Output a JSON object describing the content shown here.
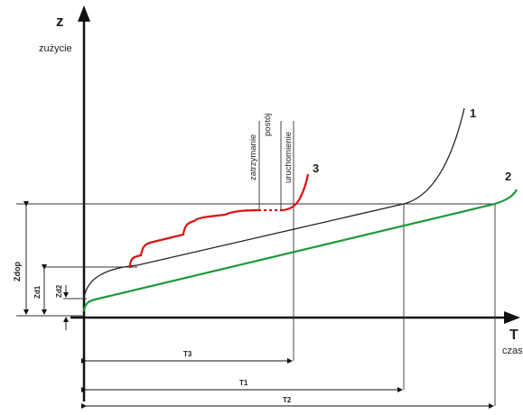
{
  "axes": {
    "y_symbol": "z",
    "y_label": "zużycie",
    "x_symbol": "T",
    "x_label": "czas"
  },
  "annotations": {
    "stop_label": "zatrzymanie",
    "idle_label": "postój",
    "restart_label": "uruchomienie"
  },
  "curve_labels": {
    "c1": "1",
    "c2": "2",
    "c3": "3"
  },
  "vertical_dims": {
    "z_dop": "Zdop",
    "z_d1": "Zd1",
    "z_d2": "Zd2"
  },
  "horizontal_dims": {
    "t_3": "T3",
    "t_1": "T1",
    "t_2": "T2"
  },
  "colors": {
    "curve1": "#222222",
    "curve2": "#1a9a3a",
    "curve3": "#dd1111",
    "axis": "#111111",
    "guide": "#333333"
  }
}
